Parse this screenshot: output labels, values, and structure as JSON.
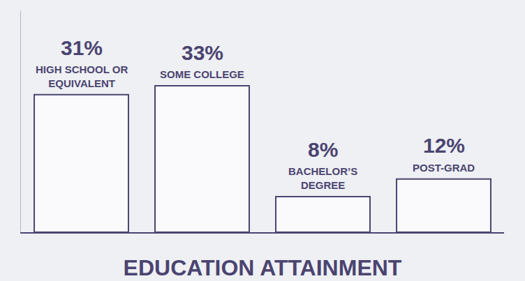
{
  "chart_data": {
    "type": "bar",
    "title": "EDUCATION ATTAINMENT",
    "categories": [
      "HIGH SCHOOL OR EQUIVALENT",
      "SOME COLLEGE",
      "BACHELOR’S DEGREE",
      "POST-GRAD"
    ],
    "values": [
      31,
      33,
      8,
      12
    ],
    "value_labels": [
      "31%",
      "33%",
      "8%",
      "12%"
    ],
    "color": "#fafafc",
    "ylim": [
      0,
      50
    ],
    "tick_labels": false,
    "data_labels": true,
    "grid": false
  }
}
